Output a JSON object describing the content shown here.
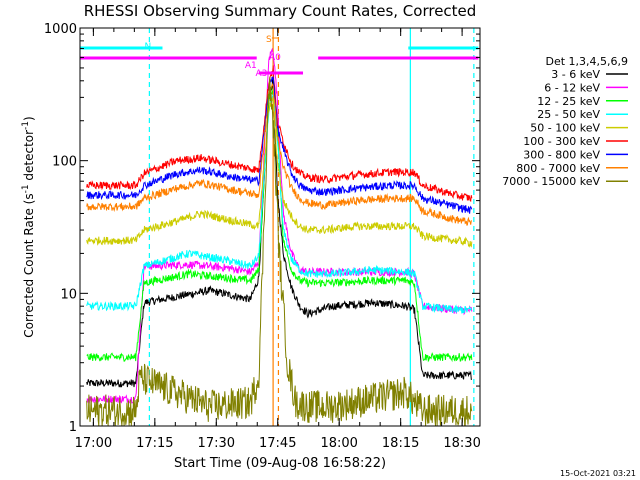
{
  "chart_data": {
    "type": "line",
    "title": "RHESSI Observing Summary Count Rates, Corrected",
    "xlabel": "Start Time (09-Aug-08 16:58:22)",
    "ylabel_main": "Corrected Count Rate (s",
    "ylabel_sup1": "-1",
    "ylabel_mid": " detector",
    "ylabel_sup2": "-1",
    "ylabel_end": ")",
    "footer": "15-Oct-2021 03:21",
    "y_scale": "log",
    "ylim": [
      1,
      1000
    ],
    "xlim": [
      -1.6333,
      96.0
    ],
    "x_unit": "minutes after 16:58:22",
    "x_ticks": [
      {
        "t": 1.6333,
        "label": "17:00"
      },
      {
        "t": 16.6333,
        "label": "17:15"
      },
      {
        "t": 31.6333,
        "label": "17:30"
      },
      {
        "t": 46.6333,
        "label": "17:45"
      },
      {
        "t": 61.6333,
        "label": "18:00"
      },
      {
        "t": 76.6333,
        "label": "18:15"
      },
      {
        "t": 91.6333,
        "label": "18:30"
      }
    ],
    "y_ticks": [
      {
        "v": 1,
        "label": "1"
      },
      {
        "v": 10,
        "label": "10"
      },
      {
        "v": 100,
        "label": "100"
      },
      {
        "v": 1000,
        "label": "1000"
      }
    ],
    "legend_title": "Det 1,3,4,5,6,9",
    "legend_position": "right",
    "series": [
      {
        "name": "3 - 6 keV",
        "color": "#000000",
        "x": [
          0,
          12,
          14,
          30,
          40,
          42,
          44.5,
          45.5,
          46.5,
          48,
          50,
          52,
          54,
          60,
          70,
          78,
          80,
          82,
          90,
          94
        ],
        "y": [
          2.1,
          2.1,
          8.5,
          10.5,
          9,
          13,
          300,
          400,
          60,
          20,
          11,
          8,
          7,
          8,
          8.5,
          8,
          7.5,
          2.4,
          2.4,
          2.4
        ]
      },
      {
        "name": "6 - 12 keV",
        "color": "#ff00ff",
        "x": [
          0,
          12,
          14,
          25,
          35,
          40,
          42,
          44.5,
          45.5,
          46.5,
          48,
          50,
          52,
          54,
          60,
          70,
          78,
          80,
          82,
          90,
          94
        ],
        "y": [
          1.6,
          1.6,
          16,
          16.5,
          15.5,
          14.5,
          17,
          600,
          700,
          300,
          40,
          20,
          15,
          14.5,
          14.5,
          14.5,
          14.5,
          14,
          8,
          7.5,
          7.5
        ]
      },
      {
        "name": "12 - 25 keV",
        "color": "#00ff00",
        "x": [
          0,
          12,
          14,
          25,
          35,
          40,
          42,
          44.5,
          45.5,
          46.5,
          48,
          50,
          52,
          54,
          60,
          70,
          78,
          80,
          82,
          90,
          94
        ],
        "y": [
          3.3,
          3.3,
          12,
          14,
          13,
          12.5,
          15,
          300,
          350,
          200,
          25,
          15,
          12.5,
          12,
          12,
          12.5,
          12.5,
          12,
          3.3,
          3.3,
          3.3
        ]
      },
      {
        "name": "25 - 50 keV",
        "color": "#00ffff",
        "x": [
          0,
          12,
          14,
          25,
          35,
          40,
          42,
          44.5,
          45.5,
          46.5,
          48,
          50,
          52,
          54,
          60,
          70,
          78,
          80,
          82,
          90,
          94
        ],
        "y": [
          8,
          8,
          16,
          20,
          17.5,
          16,
          19,
          250,
          300,
          150,
          30,
          18,
          15,
          14,
          14,
          15,
          14.5,
          14,
          8,
          7.5,
          7.5
        ]
      },
      {
        "name": "50 - 100 keV",
        "color": "#cccc00",
        "x": [
          0,
          12,
          14,
          22,
          28,
          36,
          42,
          44.5,
          45.5,
          46.5,
          48,
          50,
          52,
          54,
          58,
          66,
          74,
          80,
          82,
          90,
          94
        ],
        "y": [
          25,
          25,
          30,
          35,
          40,
          35,
          32,
          250,
          300,
          100,
          50,
          38,
          32,
          30,
          30,
          32,
          32,
          32,
          27,
          25,
          24
        ]
      },
      {
        "name": "100 - 300 keV",
        "color": "#ff0000",
        "x": [
          0,
          12,
          14,
          22,
          28,
          36,
          42,
          44.5,
          45.5,
          46.5,
          48,
          50,
          52,
          54,
          58,
          66,
          74,
          80,
          82,
          90,
          94
        ],
        "y": [
          65,
          65,
          80,
          100,
          105,
          92,
          85,
          400,
          500,
          200,
          140,
          95,
          80,
          75,
          72,
          78,
          82,
          82,
          65,
          55,
          52
        ]
      },
      {
        "name": "300 - 800 keV",
        "color": "#0000ff",
        "x": [
          0,
          12,
          14,
          22,
          28,
          36,
          42,
          44.5,
          45.5,
          46.5,
          48,
          50,
          52,
          54,
          58,
          66,
          74,
          80,
          82,
          90,
          94
        ],
        "y": [
          55,
          55,
          65,
          80,
          85,
          75,
          70,
          350,
          450,
          180,
          120,
          80,
          65,
          60,
          58,
          62,
          65,
          65,
          52,
          45,
          42
        ]
      },
      {
        "name": "800 - 7000 keV",
        "color": "#ff8000",
        "x": [
          0,
          12,
          14,
          22,
          28,
          36,
          42,
          44.5,
          45.5,
          46.5,
          48,
          50,
          52,
          54,
          58,
          66,
          74,
          80,
          82,
          90,
          94
        ],
        "y": [
          45,
          45,
          52,
          62,
          68,
          60,
          55,
          320,
          380,
          150,
          90,
          62,
          52,
          48,
          46,
          50,
          52,
          52,
          42,
          36,
          34
        ]
      },
      {
        "name": "7000 - 15000 keV",
        "color": "#808000",
        "x": [
          0,
          12,
          13,
          30,
          40,
          42,
          44.5,
          45.5,
          47,
          49,
          51,
          54,
          60,
          70,
          78,
          80,
          82,
          94
        ],
        "y": [
          1.3,
          1.3,
          2.3,
          1.4,
          1.5,
          2.4,
          400,
          200,
          20,
          3,
          1.5,
          1.4,
          1.4,
          1.6,
          1.8,
          1.5,
          1.3,
          1.3
        ]
      }
    ],
    "status_bars": [
      {
        "label": "N",
        "color": "#00ffff",
        "row": "upper",
        "segments": [
          [
            -1.63,
            18.5
          ],
          [
            78.5,
            95.6
          ]
        ]
      },
      {
        "label": "",
        "color": "#ff00ff",
        "row": "lower",
        "segments": [
          [
            -1.63,
            41.5
          ],
          [
            56.5,
            95.6
          ]
        ]
      },
      {
        "label": "A1",
        "color": "#ff00ff",
        "row": "attenuator",
        "segments": [
          [
            42.0,
            44.0
          ]
        ]
      },
      {
        "label": "A0",
        "color": "#ff00ff",
        "row": "attenuator",
        "segments": [
          [
            44.0,
            45.0
          ]
        ]
      },
      {
        "label": "A3",
        "color": "#ff00ff",
        "row": "attenuator",
        "segments": [
          [
            44.6,
            52.8
          ]
        ]
      },
      {
        "label": "S",
        "color": "#ff8000",
        "row": "saa",
        "segments": [
          [
            45.2,
            46.8
          ]
        ]
      }
    ],
    "vlines": [
      {
        "t": 15.3,
        "color": "#00ffff",
        "style": "dashed"
      },
      {
        "t": 79.0,
        "color": "#00ffff",
        "style": "solid"
      },
      {
        "t": 94.5,
        "color": "#00ffff",
        "style": "dashed"
      },
      {
        "t": 45.5,
        "color": "#ff8000",
        "style": "solid"
      },
      {
        "t": 46.8,
        "color": "#ff8000",
        "style": "dashed"
      }
    ]
  }
}
